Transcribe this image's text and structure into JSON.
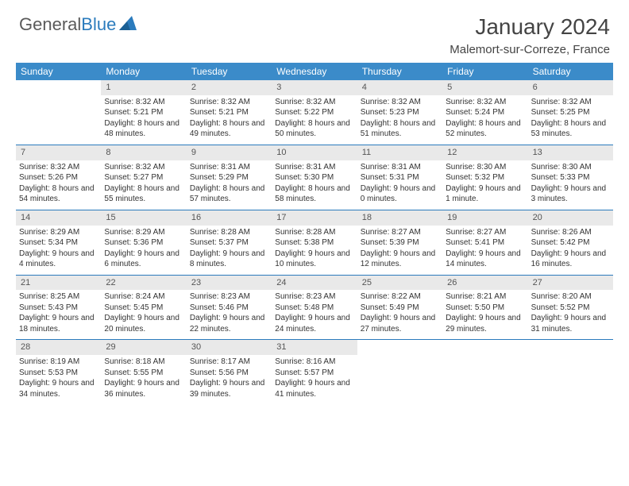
{
  "logo": {
    "part1": "General",
    "part2": "Blue"
  },
  "header": {
    "title": "January 2024",
    "location": "Malemort-sur-Correze, France"
  },
  "styling": {
    "header_bg": "#3b8bc9",
    "row_divider": "#2b7bbd",
    "daynum_bg": "#e9e9e9",
    "page_bg": "#ffffff",
    "title_fontsize": 28,
    "body_fontsize": 10,
    "columns": 7
  },
  "daynames": [
    "Sunday",
    "Monday",
    "Tuesday",
    "Wednesday",
    "Thursday",
    "Friday",
    "Saturday"
  ],
  "weeks": [
    [
      null,
      {
        "n": "1",
        "sr": "8:32 AM",
        "ss": "5:21 PM",
        "dl": "8 hours and 48 minutes."
      },
      {
        "n": "2",
        "sr": "8:32 AM",
        "ss": "5:21 PM",
        "dl": "8 hours and 49 minutes."
      },
      {
        "n": "3",
        "sr": "8:32 AM",
        "ss": "5:22 PM",
        "dl": "8 hours and 50 minutes."
      },
      {
        "n": "4",
        "sr": "8:32 AM",
        "ss": "5:23 PM",
        "dl": "8 hours and 51 minutes."
      },
      {
        "n": "5",
        "sr": "8:32 AM",
        "ss": "5:24 PM",
        "dl": "8 hours and 52 minutes."
      },
      {
        "n": "6",
        "sr": "8:32 AM",
        "ss": "5:25 PM",
        "dl": "8 hours and 53 minutes."
      }
    ],
    [
      {
        "n": "7",
        "sr": "8:32 AM",
        "ss": "5:26 PM",
        "dl": "8 hours and 54 minutes."
      },
      {
        "n": "8",
        "sr": "8:32 AM",
        "ss": "5:27 PM",
        "dl": "8 hours and 55 minutes."
      },
      {
        "n": "9",
        "sr": "8:31 AM",
        "ss": "5:29 PM",
        "dl": "8 hours and 57 minutes."
      },
      {
        "n": "10",
        "sr": "8:31 AM",
        "ss": "5:30 PM",
        "dl": "8 hours and 58 minutes."
      },
      {
        "n": "11",
        "sr": "8:31 AM",
        "ss": "5:31 PM",
        "dl": "9 hours and 0 minutes."
      },
      {
        "n": "12",
        "sr": "8:30 AM",
        "ss": "5:32 PM",
        "dl": "9 hours and 1 minute."
      },
      {
        "n": "13",
        "sr": "8:30 AM",
        "ss": "5:33 PM",
        "dl": "9 hours and 3 minutes."
      }
    ],
    [
      {
        "n": "14",
        "sr": "8:29 AM",
        "ss": "5:34 PM",
        "dl": "9 hours and 4 minutes."
      },
      {
        "n": "15",
        "sr": "8:29 AM",
        "ss": "5:36 PM",
        "dl": "9 hours and 6 minutes."
      },
      {
        "n": "16",
        "sr": "8:28 AM",
        "ss": "5:37 PM",
        "dl": "9 hours and 8 minutes."
      },
      {
        "n": "17",
        "sr": "8:28 AM",
        "ss": "5:38 PM",
        "dl": "9 hours and 10 minutes."
      },
      {
        "n": "18",
        "sr": "8:27 AM",
        "ss": "5:39 PM",
        "dl": "9 hours and 12 minutes."
      },
      {
        "n": "19",
        "sr": "8:27 AM",
        "ss": "5:41 PM",
        "dl": "9 hours and 14 minutes."
      },
      {
        "n": "20",
        "sr": "8:26 AM",
        "ss": "5:42 PM",
        "dl": "9 hours and 16 minutes."
      }
    ],
    [
      {
        "n": "21",
        "sr": "8:25 AM",
        "ss": "5:43 PM",
        "dl": "9 hours and 18 minutes."
      },
      {
        "n": "22",
        "sr": "8:24 AM",
        "ss": "5:45 PM",
        "dl": "9 hours and 20 minutes."
      },
      {
        "n": "23",
        "sr": "8:23 AM",
        "ss": "5:46 PM",
        "dl": "9 hours and 22 minutes."
      },
      {
        "n": "24",
        "sr": "8:23 AM",
        "ss": "5:48 PM",
        "dl": "9 hours and 24 minutes."
      },
      {
        "n": "25",
        "sr": "8:22 AM",
        "ss": "5:49 PM",
        "dl": "9 hours and 27 minutes."
      },
      {
        "n": "26",
        "sr": "8:21 AM",
        "ss": "5:50 PM",
        "dl": "9 hours and 29 minutes."
      },
      {
        "n": "27",
        "sr": "8:20 AM",
        "ss": "5:52 PM",
        "dl": "9 hours and 31 minutes."
      }
    ],
    [
      {
        "n": "28",
        "sr": "8:19 AM",
        "ss": "5:53 PM",
        "dl": "9 hours and 34 minutes."
      },
      {
        "n": "29",
        "sr": "8:18 AM",
        "ss": "5:55 PM",
        "dl": "9 hours and 36 minutes."
      },
      {
        "n": "30",
        "sr": "8:17 AM",
        "ss": "5:56 PM",
        "dl": "9 hours and 39 minutes."
      },
      {
        "n": "31",
        "sr": "8:16 AM",
        "ss": "5:57 PM",
        "dl": "9 hours and 41 minutes."
      },
      null,
      null,
      null
    ]
  ],
  "labels": {
    "sunrise": "Sunrise: ",
    "sunset": "Sunset: ",
    "daylight": "Daylight: "
  }
}
